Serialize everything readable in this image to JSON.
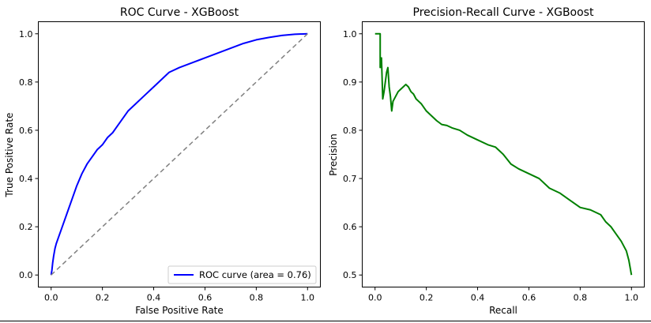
{
  "chart_data": [
    {
      "type": "line",
      "title": "ROC Curve - XGBoost",
      "xlabel": "False Positive Rate",
      "ylabel": "True Positive Rate",
      "xlim": [
        -0.05,
        1.05
      ],
      "ylim": [
        -0.05,
        1.05
      ],
      "xticks": [
        "0.0",
        "0.2",
        "0.4",
        "0.6",
        "0.8",
        "1.0"
      ],
      "yticks": [
        "0.0",
        "0.2",
        "0.4",
        "0.6",
        "0.8",
        "1.0"
      ],
      "grid": false,
      "legend_position": "lower-right",
      "series": [
        {
          "name": "ROC curve (area = 0.76)",
          "color": "#0000ff",
          "style": "solid",
          "x": [
            0.0,
            0.003,
            0.006,
            0.01,
            0.015,
            0.02,
            0.03,
            0.04,
            0.05,
            0.06,
            0.08,
            0.1,
            0.12,
            0.14,
            0.16,
            0.18,
            0.2,
            0.22,
            0.24,
            0.26,
            0.28,
            0.3,
            0.33,
            0.36,
            0.4,
            0.42,
            0.44,
            0.46,
            0.5,
            0.55,
            0.6,
            0.65,
            0.7,
            0.75,
            0.8,
            0.85,
            0.9,
            0.95,
            1.0
          ],
          "y": [
            0.0,
            0.02,
            0.05,
            0.08,
            0.11,
            0.13,
            0.16,
            0.19,
            0.22,
            0.25,
            0.31,
            0.37,
            0.42,
            0.46,
            0.49,
            0.52,
            0.54,
            0.57,
            0.59,
            0.62,
            0.65,
            0.68,
            0.71,
            0.74,
            0.78,
            0.8,
            0.82,
            0.84,
            0.86,
            0.88,
            0.9,
            0.92,
            0.94,
            0.96,
            0.975,
            0.985,
            0.993,
            0.998,
            1.0
          ]
        },
        {
          "name": "",
          "color": "#808080",
          "style": "dashed",
          "x": [
            0.0,
            1.0
          ],
          "y": [
            0.0,
            1.0
          ]
        }
      ]
    },
    {
      "type": "line",
      "title": "Precision-Recall Curve - XGBoost",
      "xlabel": "Recall",
      "ylabel": "Precision",
      "xlim": [
        -0.05,
        1.05
      ],
      "ylim": [
        0.475,
        1.025
      ],
      "xticks": [
        "0.0",
        "0.2",
        "0.4",
        "0.6",
        "0.8",
        "1.0"
      ],
      "yticks": [
        "0.5",
        "0.6",
        "0.7",
        "0.8",
        "0.9",
        "1.0"
      ],
      "grid": false,
      "series": [
        {
          "name": "",
          "color": "#008000",
          "style": "solid",
          "x": [
            0.0,
            0.02,
            0.02,
            0.025,
            0.03,
            0.035,
            0.04,
            0.045,
            0.05,
            0.055,
            0.06,
            0.065,
            0.07,
            0.08,
            0.09,
            0.1,
            0.11,
            0.12,
            0.13,
            0.14,
            0.15,
            0.16,
            0.17,
            0.18,
            0.2,
            0.22,
            0.24,
            0.26,
            0.28,
            0.3,
            0.33,
            0.36,
            0.4,
            0.44,
            0.47,
            0.5,
            0.53,
            0.56,
            0.6,
            0.64,
            0.68,
            0.72,
            0.76,
            0.8,
            0.84,
            0.88,
            0.9,
            0.92,
            0.94,
            0.96,
            0.98,
            0.99,
            1.0
          ],
          "y": [
            1.0,
            1.0,
            0.93,
            0.95,
            0.865,
            0.88,
            0.9,
            0.92,
            0.93,
            0.89,
            0.87,
            0.84,
            0.86,
            0.87,
            0.88,
            0.885,
            0.89,
            0.895,
            0.89,
            0.88,
            0.875,
            0.865,
            0.86,
            0.855,
            0.84,
            0.83,
            0.82,
            0.812,
            0.81,
            0.805,
            0.8,
            0.79,
            0.78,
            0.77,
            0.765,
            0.75,
            0.73,
            0.72,
            0.71,
            0.7,
            0.68,
            0.67,
            0.655,
            0.64,
            0.635,
            0.625,
            0.61,
            0.6,
            0.585,
            0.57,
            0.55,
            0.53,
            0.5
          ]
        }
      ]
    }
  ]
}
